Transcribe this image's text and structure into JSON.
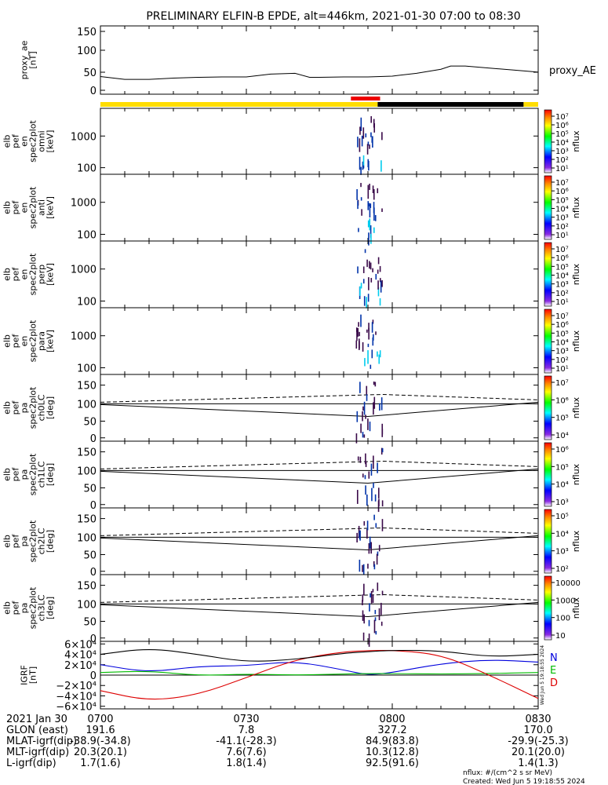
{
  "title": "PRELIMINARY ELFIN-B EPDE, alt=446km, 2021-01-30 07:00 to 08:30",
  "colors": {
    "bar_yellow": "#ffdd00",
    "bar_black": "#000000",
    "bar_red": "#ee0000",
    "bx": "#0000dd",
    "by": "#00bb00",
    "bz": "#dd0000",
    "spec_low": "#00ccee",
    "spec_mid": "#0033aa",
    "spec_high": "#3a0a4a"
  },
  "chart_data": [
    {
      "type": "line",
      "name": "proxy_ae",
      "ylabel": [
        "proxy_ae",
        "[nT]"
      ],
      "yticks": [
        "150",
        "100",
        "50",
        "0"
      ],
      "ylim": [
        -10,
        160
      ],
      "legend": "proxy_AE",
      "x_minutes": [
        0,
        5,
        10,
        15,
        20,
        25,
        30,
        35,
        40,
        43,
        45,
        50,
        55,
        60,
        65,
        70,
        72,
        75,
        80,
        85,
        90
      ],
      "values": [
        34,
        27,
        27,
        30,
        32,
        33,
        33,
        40,
        42,
        32,
        32,
        33,
        33,
        35,
        42,
        52,
        60,
        60,
        55,
        50,
        45
      ]
    },
    {
      "type": "heatmap",
      "name": "omni",
      "ylabel": [
        "elb",
        "pef",
        "en",
        "spec2plot",
        "omni",
        "[keV]"
      ],
      "yticks": [
        "1000",
        "100"
      ],
      "ylog": true,
      "cbar_ticks": [
        "10⁷",
        "10⁶",
        "10⁵",
        "10⁴",
        "10³",
        "10²",
        "10¹"
      ],
      "cbar_label": "nflux"
    },
    {
      "type": "heatmap",
      "name": "anti",
      "ylabel": [
        "elb",
        "pef",
        "en",
        "spec2plot",
        "anti",
        "[keV]"
      ],
      "yticks": [
        "1000",
        "100"
      ],
      "ylog": true,
      "cbar_ticks": [
        "10⁷",
        "10⁶",
        "10⁵",
        "10⁴",
        "10³",
        "10²",
        "10¹"
      ],
      "cbar_label": "nflux"
    },
    {
      "type": "heatmap",
      "name": "perp",
      "ylabel": [
        "elb",
        "pef",
        "en",
        "spec2plot",
        "perp",
        "[keV]"
      ],
      "yticks": [
        "1000",
        "100"
      ],
      "ylog": true,
      "cbar_ticks": [
        "10⁷",
        "10⁶",
        "10⁵",
        "10⁴",
        "10³",
        "10²",
        "10¹"
      ],
      "cbar_label": "nflux"
    },
    {
      "type": "heatmap",
      "name": "para",
      "ylabel": [
        "elb",
        "pef",
        "en",
        "spec2plot",
        "para",
        "[keV]"
      ],
      "yticks": [
        "1000",
        "100"
      ],
      "ylog": true,
      "cbar_ticks": [
        "10⁷",
        "10⁶",
        "10⁵",
        "10⁴",
        "10³",
        "10²",
        "10¹"
      ],
      "cbar_label": "nflux"
    },
    {
      "type": "heatmap",
      "name": "ch0LC",
      "ylabel": [
        "elb",
        "pef",
        "pa",
        "spec2plot",
        "ch0LC",
        "[deg]"
      ],
      "yticks": [
        "150",
        "100",
        "50",
        "0"
      ],
      "ylim": [
        -10,
        160
      ],
      "cbar_ticks": [
        "10⁷",
        "10⁶",
        "10⁵",
        "10⁴"
      ],
      "cbar_label": "nflux"
    },
    {
      "type": "heatmap",
      "name": "ch1LC",
      "ylabel": [
        "elb",
        "pef",
        "pa",
        "spec2plot",
        "ch1LC",
        "[deg]"
      ],
      "yticks": [
        "150",
        "100",
        "50",
        "0"
      ],
      "ylim": [
        -10,
        160
      ],
      "cbar_ticks": [
        "10⁶",
        "10⁵",
        "10⁴",
        "10³"
      ],
      "cbar_label": "nflux"
    },
    {
      "type": "heatmap",
      "name": "ch2LC",
      "ylabel": [
        "elb",
        "pef",
        "pa",
        "spec2plot",
        "ch2LC",
        "[deg]"
      ],
      "yticks": [
        "150",
        "100",
        "50",
        "0"
      ],
      "ylim": [
        -10,
        160
      ],
      "cbar_ticks": [
        "10⁵",
        "10⁴",
        "10³",
        "10²"
      ],
      "cbar_label": "nflux"
    },
    {
      "type": "heatmap",
      "name": "ch3LC",
      "ylabel": [
        "elb",
        "pef",
        "pa",
        "spec2plot",
        "ch3LC",
        "[deg]"
      ],
      "yticks": [
        "150",
        "100",
        "50",
        "0"
      ],
      "ylim": [
        -10,
        160
      ],
      "cbar_ticks": [
        "10000",
        "1000",
        "100",
        "10"
      ],
      "cbar_label": "nflux"
    },
    {
      "type": "line",
      "name": "igrf",
      "ylabel": [
        "IGRF",
        "[nT]"
      ],
      "yticks": [
        "6×10⁴",
        "4×10⁴",
        "2×10⁴",
        "0",
        "−2×10⁴",
        "−4×10⁴",
        "−6×10⁴"
      ],
      "ylim": [
        -65000,
        65000
      ],
      "legend": [
        "N",
        "E",
        "D"
      ],
      "x_minutes": [
        0,
        10,
        20,
        30,
        40,
        50,
        55,
        60,
        70,
        80,
        90
      ],
      "series": [
        {
          "name": "N",
          "values": [
            20000,
            5000,
            17000,
            18000,
            27000,
            10000,
            0,
            5000,
            22000,
            30000,
            25000
          ]
        },
        {
          "name": "E",
          "values": [
            5000,
            8000,
            -1000,
            2000,
            0,
            2000,
            3000,
            3000,
            2000,
            3000,
            5000
          ]
        },
        {
          "name": "D",
          "values": [
            -30000,
            -50000,
            -38000,
            -5000,
            30000,
            45000,
            47000,
            48000,
            40000,
            0,
            -45000
          ]
        },
        {
          "name": "total",
          "values": [
            40000,
            52000,
            40000,
            25000,
            30000,
            42000,
            45000,
            48000,
            47000,
            35000,
            40000
          ]
        }
      ]
    }
  ],
  "time_axis": {
    "tick_labels": [
      "0700",
      "0730",
      "0800",
      "0830"
    ],
    "tick_minutes": [
      0,
      30,
      60,
      90
    ]
  },
  "footer": {
    "rows": [
      {
        "label": "2021 Jan 30",
        "values": [
          "0700",
          "0730",
          "0800",
          "0830"
        ]
      },
      {
        "label": "GLON (east)",
        "values": [
          "191.6",
          "7.8",
          "327.2",
          "170.0"
        ]
      },
      {
        "label": "MLAT-igrf(dip)",
        "values": [
          "-38.9(-34.8)",
          "-41.1(-28.3)",
          "84.9(83.8)",
          "-29.9(-25.3)"
        ]
      },
      {
        "label": "MLT-igrf(dip)",
        "values": [
          "20.3(20.1)",
          "7.6(7.6)",
          "10.3(12.8)",
          "20.1(20.0)"
        ]
      },
      {
        "label": "L-igrf(dip)",
        "values": [
          "1.7(1.6)",
          "1.8(1.4)",
          "92.5(91.6)",
          "1.4(1.3)"
        ]
      }
    ],
    "units_note": "nflux: #/(cm^2 s sr MeV)",
    "created": "Created: Wed Jun  5 19:18:55 2024",
    "stamp": "Wed Jun  5 19:18:55 2024"
  }
}
